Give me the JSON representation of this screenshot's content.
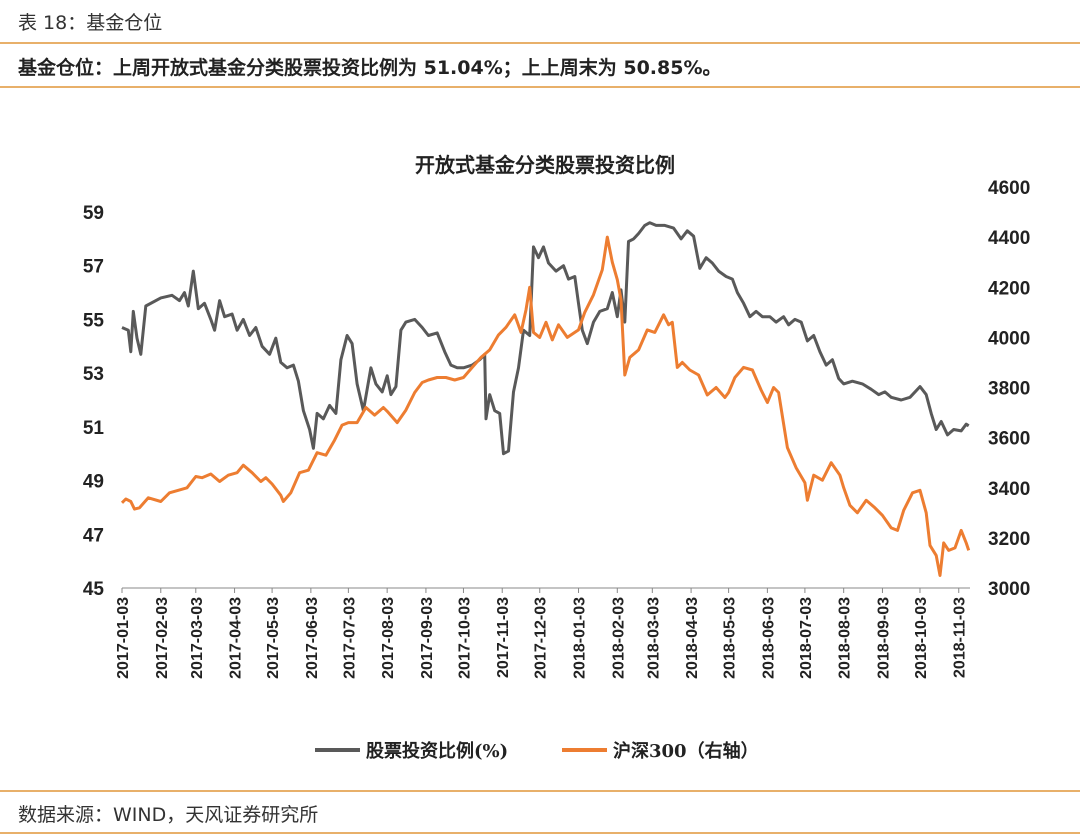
{
  "header": {
    "table_label": "表 18：基金仓位",
    "summary": "基金仓位：上周开放式基金分类股票投资比例为 51.04%；上上周末为 50.85%。"
  },
  "footer": {
    "source": "数据来源：WIND，天风证券研究所"
  },
  "colors": {
    "rule": "#e8b06a",
    "series_equity_ratio": "#595959",
    "series_hs300": "#ed7d31"
  },
  "chart_data": {
    "type": "line",
    "title": "开放式基金分类股票投资比例",
    "x_ticks": [
      "2017-01-03",
      "2017-02-03",
      "2017-03-03",
      "2017-04-03",
      "2017-05-03",
      "2017-06-03",
      "2017-07-03",
      "2017-08-03",
      "2017-09-03",
      "2017-10-03",
      "2017-11-03",
      "2017-12-03",
      "2018-01-03",
      "2018-02-03",
      "2018-03-03",
      "2018-04-03",
      "2018-05-03",
      "2018-06-03",
      "2018-07-03",
      "2018-08-03",
      "2018-09-03",
      "2018-10-03",
      "2018-11-03"
    ],
    "y_left": {
      "min": 45,
      "max": 59,
      "ticks": [
        "45",
        "47",
        "49",
        "51",
        "53",
        "55",
        "57",
        "59"
      ]
    },
    "y_right": {
      "min": 3000,
      "max": 4600,
      "ticks": [
        "3000",
        "3200",
        "3400",
        "3600",
        "3800",
        "4000",
        "4200",
        "4400",
        "4600"
      ]
    },
    "grid": false,
    "legend_position": "bottom",
    "series": [
      {
        "name": "股票投资比例(%)",
        "axis": "left",
        "points": [
          [
            "2017-01-03",
            54.7
          ],
          [
            "2017-01-08",
            54.6
          ],
          [
            "2017-01-10",
            53.8
          ],
          [
            "2017-01-12",
            55.3
          ],
          [
            "2017-01-15",
            54.3
          ],
          [
            "2017-01-18",
            53.7
          ],
          [
            "2017-01-22",
            55.5
          ],
          [
            "2017-02-03",
            55.8
          ],
          [
            "2017-02-12",
            55.9
          ],
          [
            "2017-02-18",
            55.7
          ],
          [
            "2017-02-22",
            56.0
          ],
          [
            "2017-02-25",
            55.5
          ],
          [
            "2017-03-01",
            56.8
          ],
          [
            "2017-03-05",
            55.4
          ],
          [
            "2017-03-10",
            55.6
          ],
          [
            "2017-03-15",
            55.0
          ],
          [
            "2017-03-18",
            54.6
          ],
          [
            "2017-03-22",
            55.7
          ],
          [
            "2017-03-26",
            55.1
          ],
          [
            "2017-04-01",
            55.2
          ],
          [
            "2017-04-05",
            54.6
          ],
          [
            "2017-04-10",
            55.0
          ],
          [
            "2017-04-15",
            54.4
          ],
          [
            "2017-04-20",
            54.7
          ],
          [
            "2017-04-25",
            54.0
          ],
          [
            "2017-05-01",
            53.7
          ],
          [
            "2017-05-06",
            54.3
          ],
          [
            "2017-05-10",
            53.4
          ],
          [
            "2017-05-15",
            53.2
          ],
          [
            "2017-05-20",
            53.3
          ],
          [
            "2017-05-24",
            52.7
          ],
          [
            "2017-05-28",
            51.6
          ],
          [
            "2017-06-02",
            50.9
          ],
          [
            "2017-06-05",
            50.2
          ],
          [
            "2017-06-08",
            51.5
          ],
          [
            "2017-06-13",
            51.3
          ],
          [
            "2017-06-18",
            51.8
          ],
          [
            "2017-06-23",
            51.5
          ],
          [
            "2017-06-27",
            53.5
          ],
          [
            "2017-07-02",
            54.4
          ],
          [
            "2017-07-06",
            54.1
          ],
          [
            "2017-07-10",
            52.6
          ],
          [
            "2017-07-15",
            51.6
          ],
          [
            "2017-07-21",
            53.2
          ],
          [
            "2017-07-25",
            52.6
          ],
          [
            "2017-07-30",
            52.3
          ],
          [
            "2017-08-03",
            52.9
          ],
          [
            "2017-08-06",
            52.2
          ],
          [
            "2017-08-10",
            52.5
          ],
          [
            "2017-08-14",
            54.6
          ],
          [
            "2017-08-18",
            54.9
          ],
          [
            "2017-08-25",
            55.0
          ],
          [
            "2017-08-31",
            54.7
          ],
          [
            "2017-09-05",
            54.4
          ],
          [
            "2017-09-12",
            54.5
          ],
          [
            "2017-09-18",
            53.8
          ],
          [
            "2017-09-23",
            53.3
          ],
          [
            "2017-09-28",
            53.2
          ],
          [
            "2017-10-03",
            53.2
          ],
          [
            "2017-10-10",
            53.3
          ],
          [
            "2017-10-16",
            53.5
          ],
          [
            "2017-10-20",
            53.7
          ],
          [
            "2017-10-21",
            51.3
          ],
          [
            "2017-10-24",
            52.2
          ],
          [
            "2017-10-28",
            51.6
          ],
          [
            "2017-11-01",
            51.5
          ],
          [
            "2017-11-04",
            50.0
          ],
          [
            "2017-11-08",
            50.1
          ],
          [
            "2017-11-12",
            52.3
          ],
          [
            "2017-11-16",
            53.2
          ],
          [
            "2017-11-20",
            54.6
          ],
          [
            "2017-11-25",
            54.4
          ],
          [
            "2017-11-28",
            57.7
          ],
          [
            "2017-12-02",
            57.3
          ],
          [
            "2017-12-06",
            57.7
          ],
          [
            "2017-12-10",
            57.1
          ],
          [
            "2017-12-16",
            56.8
          ],
          [
            "2017-12-22",
            57.0
          ],
          [
            "2017-12-26",
            56.5
          ],
          [
            "2017-12-31",
            56.6
          ],
          [
            "2018-01-03",
            55.6
          ],
          [
            "2018-01-06",
            54.6
          ],
          [
            "2018-01-10",
            54.1
          ],
          [
            "2018-01-15",
            54.9
          ],
          [
            "2018-01-20",
            55.3
          ],
          [
            "2018-01-26",
            55.4
          ],
          [
            "2018-01-30",
            56.0
          ],
          [
            "2018-02-03",
            55.1
          ],
          [
            "2018-02-06",
            56.1
          ],
          [
            "2018-02-09",
            54.9
          ],
          [
            "2018-02-12",
            57.9
          ],
          [
            "2018-02-16",
            58.0
          ],
          [
            "2018-02-20",
            58.2
          ],
          [
            "2018-02-25",
            58.5
          ],
          [
            "2018-03-01",
            58.6
          ],
          [
            "2018-03-06",
            58.5
          ],
          [
            "2018-03-13",
            58.5
          ],
          [
            "2018-03-20",
            58.4
          ],
          [
            "2018-03-26",
            58.0
          ],
          [
            "2018-03-31",
            58.3
          ],
          [
            "2018-04-05",
            58.1
          ],
          [
            "2018-04-10",
            56.9
          ],
          [
            "2018-04-15",
            57.3
          ],
          [
            "2018-04-20",
            57.1
          ],
          [
            "2018-04-25",
            56.8
          ],
          [
            "2018-05-01",
            56.6
          ],
          [
            "2018-05-06",
            56.5
          ],
          [
            "2018-05-10",
            56.0
          ],
          [
            "2018-05-15",
            55.6
          ],
          [
            "2018-05-20",
            55.1
          ],
          [
            "2018-05-25",
            55.3
          ],
          [
            "2018-05-30",
            55.1
          ],
          [
            "2018-06-05",
            55.1
          ],
          [
            "2018-06-10",
            54.9
          ],
          [
            "2018-06-16",
            55.1
          ],
          [
            "2018-06-20",
            54.8
          ],
          [
            "2018-06-25",
            55.0
          ],
          [
            "2018-06-30",
            54.9
          ],
          [
            "2018-07-05",
            54.2
          ],
          [
            "2018-07-10",
            54.4
          ],
          [
            "2018-07-15",
            53.8
          ],
          [
            "2018-07-20",
            53.3
          ],
          [
            "2018-07-25",
            53.5
          ],
          [
            "2018-07-30",
            52.8
          ],
          [
            "2018-08-03",
            52.6
          ],
          [
            "2018-08-10",
            52.7
          ],
          [
            "2018-08-18",
            52.6
          ],
          [
            "2018-08-25",
            52.4
          ],
          [
            "2018-08-31",
            52.2
          ],
          [
            "2018-09-05",
            52.3
          ],
          [
            "2018-09-10",
            52.1
          ],
          [
            "2018-09-18",
            52.0
          ],
          [
            "2018-09-25",
            52.1
          ],
          [
            "2018-10-03",
            52.5
          ],
          [
            "2018-10-08",
            52.2
          ],
          [
            "2018-10-12",
            51.5
          ],
          [
            "2018-10-16",
            50.9
          ],
          [
            "2018-10-20",
            51.2
          ],
          [
            "2018-10-25",
            50.7
          ],
          [
            "2018-10-30",
            50.9
          ],
          [
            "2018-11-05",
            50.85
          ],
          [
            "2018-11-09",
            51.1
          ],
          [
            "2018-11-11",
            51.04
          ]
        ]
      },
      {
        "name": "沪深300（右轴）",
        "axis": "right",
        "points": [
          [
            "2017-01-03",
            3340
          ],
          [
            "2017-01-06",
            3355
          ],
          [
            "2017-01-10",
            3345
          ],
          [
            "2017-01-13",
            3315
          ],
          [
            "2017-01-17",
            3320
          ],
          [
            "2017-01-24",
            3360
          ],
          [
            "2017-02-03",
            3345
          ],
          [
            "2017-02-10",
            3380
          ],
          [
            "2017-02-17",
            3390
          ],
          [
            "2017-02-24",
            3400
          ],
          [
            "2017-03-03",
            3445
          ],
          [
            "2017-03-08",
            3440
          ],
          [
            "2017-03-15",
            3455
          ],
          [
            "2017-03-22",
            3425
          ],
          [
            "2017-03-29",
            3450
          ],
          [
            "2017-04-05",
            3460
          ],
          [
            "2017-04-10",
            3490
          ],
          [
            "2017-04-17",
            3460
          ],
          [
            "2017-04-24",
            3425
          ],
          [
            "2017-04-28",
            3440
          ],
          [
            "2017-05-03",
            3415
          ],
          [
            "2017-05-10",
            3370
          ],
          [
            "2017-05-12",
            3345
          ],
          [
            "2017-05-18",
            3380
          ],
          [
            "2017-05-25",
            3460
          ],
          [
            "2017-06-01",
            3470
          ],
          [
            "2017-06-08",
            3540
          ],
          [
            "2017-06-15",
            3530
          ],
          [
            "2017-06-22",
            3590
          ],
          [
            "2017-06-28",
            3650
          ],
          [
            "2017-07-03",
            3660
          ],
          [
            "2017-07-10",
            3660
          ],
          [
            "2017-07-17",
            3720
          ],
          [
            "2017-07-24",
            3690
          ],
          [
            "2017-07-31",
            3720
          ],
          [
            "2017-08-03",
            3705
          ],
          [
            "2017-08-11",
            3660
          ],
          [
            "2017-08-18",
            3710
          ],
          [
            "2017-08-25",
            3780
          ],
          [
            "2017-08-31",
            3820
          ],
          [
            "2017-09-05",
            3830
          ],
          [
            "2017-09-12",
            3840
          ],
          [
            "2017-09-19",
            3840
          ],
          [
            "2017-09-26",
            3830
          ],
          [
            "2017-10-03",
            3840
          ],
          [
            "2017-10-10",
            3880
          ],
          [
            "2017-10-17",
            3920
          ],
          [
            "2017-10-24",
            3950
          ],
          [
            "2017-10-31",
            4010
          ],
          [
            "2017-11-06",
            4040
          ],
          [
            "2017-11-13",
            4090
          ],
          [
            "2017-11-18",
            4020
          ],
          [
            "2017-11-22",
            4110
          ],
          [
            "2017-11-25",
            4200
          ],
          [
            "2017-11-28",
            4020
          ],
          [
            "2017-12-03",
            4000
          ],
          [
            "2017-12-08",
            4060
          ],
          [
            "2017-12-13",
            3990
          ],
          [
            "2017-12-18",
            4050
          ],
          [
            "2017-12-25",
            4000
          ],
          [
            "2018-01-03",
            4030
          ],
          [
            "2018-01-08",
            4100
          ],
          [
            "2018-01-15",
            4170
          ],
          [
            "2018-01-22",
            4270
          ],
          [
            "2018-01-26",
            4400
          ],
          [
            "2018-01-30",
            4300
          ],
          [
            "2018-02-03",
            4230
          ],
          [
            "2018-02-06",
            4150
          ],
          [
            "2018-02-09",
            3850
          ],
          [
            "2018-02-13",
            3920
          ],
          [
            "2018-02-20",
            3950
          ],
          [
            "2018-02-27",
            4030
          ],
          [
            "2018-03-05",
            4020
          ],
          [
            "2018-03-12",
            4090
          ],
          [
            "2018-03-16",
            4050
          ],
          [
            "2018-03-19",
            4060
          ],
          [
            "2018-03-23",
            3880
          ],
          [
            "2018-03-27",
            3900
          ],
          [
            "2018-04-02",
            3870
          ],
          [
            "2018-04-09",
            3850
          ],
          [
            "2018-04-16",
            3770
          ],
          [
            "2018-04-23",
            3800
          ],
          [
            "2018-04-30",
            3760
          ],
          [
            "2018-05-03",
            3780
          ],
          [
            "2018-05-08",
            3840
          ],
          [
            "2018-05-15",
            3880
          ],
          [
            "2018-05-22",
            3870
          ],
          [
            "2018-05-29",
            3790
          ],
          [
            "2018-06-03",
            3740
          ],
          [
            "2018-06-08",
            3800
          ],
          [
            "2018-06-12",
            3780
          ],
          [
            "2018-06-19",
            3560
          ],
          [
            "2018-06-26",
            3480
          ],
          [
            "2018-07-03",
            3420
          ],
          [
            "2018-07-05",
            3350
          ],
          [
            "2018-07-10",
            3450
          ],
          [
            "2018-07-17",
            3430
          ],
          [
            "2018-07-24",
            3500
          ],
          [
            "2018-07-31",
            3450
          ],
          [
            "2018-08-03",
            3400
          ],
          [
            "2018-08-08",
            3330
          ],
          [
            "2018-08-14",
            3300
          ],
          [
            "2018-08-21",
            3350
          ],
          [
            "2018-08-28",
            3320
          ],
          [
            "2018-09-03",
            3290
          ],
          [
            "2018-09-10",
            3240
          ],
          [
            "2018-09-15",
            3230
          ],
          [
            "2018-09-20",
            3310
          ],
          [
            "2018-09-27",
            3380
          ],
          [
            "2018-10-03",
            3390
          ],
          [
            "2018-10-08",
            3300
          ],
          [
            "2018-10-11",
            3170
          ],
          [
            "2018-10-16",
            3130
          ],
          [
            "2018-10-19",
            3050
          ],
          [
            "2018-10-22",
            3180
          ],
          [
            "2018-10-26",
            3150
          ],
          [
            "2018-10-31",
            3160
          ],
          [
            "2018-11-05",
            3230
          ],
          [
            "2018-11-09",
            3180
          ],
          [
            "2018-11-11",
            3150
          ]
        ]
      }
    ]
  }
}
